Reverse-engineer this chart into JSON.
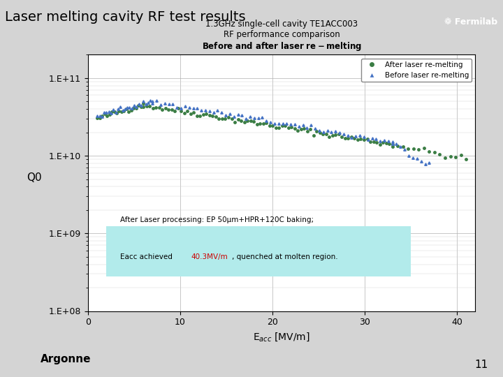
{
  "title": "Laser melting cavity RF test results",
  "title_fontsize": 16,
  "title_color": "#000000",
  "header_bar_color": "#4472C4",
  "fermilab_text": "❁ Fermilab",
  "chart_title_line1": "1.3GHz single-cell cavity TE1ACC003",
  "chart_title_line2": "RF performance comparison",
  "chart_title_line3": "Before and after laser re-melting",
  "xlabel": "E$_{acc}$ [MV/m]",
  "ylabel": "Q0",
  "xlim": [
    0,
    42
  ],
  "ylim_log": [
    100000000.0,
    200000000000.0
  ],
  "xticks": [
    0,
    10,
    20,
    30,
    40
  ],
  "ytick_labels": [
    "1.E+08",
    "1.E+09",
    "1.E+10",
    "1.E+11"
  ],
  "ytick_values": [
    100000000.0,
    1000000000.0,
    10000000000.0,
    100000000000.0
  ],
  "grid_color": "#b0b0b0",
  "bg_color": "#ffffff",
  "plot_bg": "#ffffff",
  "slide_bg": "#e8e8e8",
  "legend_after_color": "#3a7d44",
  "legend_before_color": "#4472C4",
  "annotation_text_line1": "After Laser processing: EP 50μm+HPR+120C baking;",
  "annotation_text_line2": "Eacc achieved 40.3MV/m, quenched at molten region.",
  "annotation_highlight": "40.3MV/m",
  "annotation_bg": "#b2ebeb",
  "annotation_text_color": "#000000",
  "annotation_highlight_color": "#cc0000",
  "footer_line_color": "#4472C4",
  "page_number": "11",
  "argonne_text": "Argonne",
  "after_color": "#3a7d44",
  "before_color": "#4472C4"
}
